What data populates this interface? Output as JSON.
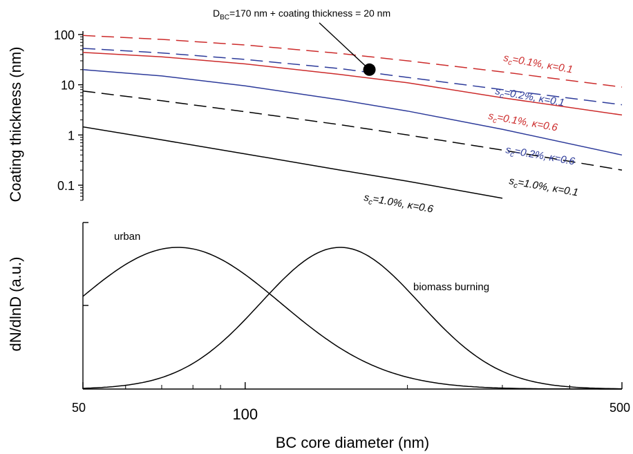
{
  "chart_data": [
    {
      "type": "line",
      "ylabel": "Coating thickness (nm)",
      "yscale": "log",
      "xscale": "log",
      "xlim": [
        50,
        500
      ],
      "ylim": [
        0.05,
        120
      ],
      "y_tick_labels": [
        "100",
        "10",
        "1",
        "0.1"
      ],
      "y_tick_values": [
        100,
        10,
        1,
        0.1
      ],
      "colors": {
        "red": "#cc2a2a",
        "blue": "#2c3a9a",
        "black": "#000000"
      },
      "series": [
        {
          "name": "sc=0.1%, κ=0.1",
          "label_main": "s",
          "label_sub": "c",
          "label_rest": "=0.1%, κ=0.1",
          "color": "#cc2a2a",
          "dash": true,
          "x": [
            50,
            70,
            100,
            150,
            200,
            300,
            500
          ],
          "y": [
            96,
            80,
            62,
            42,
            30,
            18,
            9
          ]
        },
        {
          "name": "sc=0.2%, κ=0.1",
          "label_main": "s",
          "label_sub": "c",
          "label_rest": "=0.2%, κ=0.1",
          "color": "#2c3a9a",
          "dash": true,
          "x": [
            50,
            70,
            100,
            150,
            200,
            300,
            500
          ],
          "y": [
            53,
            43,
            32,
            21,
            14,
            8,
            4
          ]
        },
        {
          "name": "sc=0.1%, κ=0.6",
          "label_main": "s",
          "label_sub": "c",
          "label_rest": "=0.1%, κ=0.6",
          "color": "#cc2a2a",
          "dash": false,
          "x": [
            50,
            70,
            100,
            150,
            200,
            300,
            500
          ],
          "y": [
            44,
            36,
            26,
            16,
            11,
            5.5,
            2.5
          ]
        },
        {
          "name": "sc=0.2%, κ=0.6",
          "label_main": "s",
          "label_sub": "c",
          "label_rest": "=0.2%, κ=0.6",
          "color": "#2c3a9a",
          "dash": false,
          "x": [
            50,
            70,
            100,
            150,
            200,
            300,
            500
          ],
          "y": [
            20,
            15,
            9.5,
            5,
            3,
            1.3,
            0.4
          ]
        },
        {
          "name": "sc=1.0%, κ=0.1",
          "label_main": "s",
          "label_sub": "c",
          "label_rest": "=1.0%, κ=0.1",
          "color": "#000000",
          "dash": true,
          "x": [
            50,
            70,
            100,
            150,
            200,
            300,
            500
          ],
          "y": [
            7.5,
            4.8,
            2.9,
            1.6,
            1.0,
            0.5,
            0.2
          ]
        },
        {
          "name": "sc=1.0%, κ=0.6",
          "label_main": "s",
          "label_sub": "c",
          "label_rest": "=1.0%, κ=0.6",
          "color": "#000000",
          "dash": false,
          "x": [
            50,
            70,
            100,
            150,
            200,
            300
          ],
          "y": [
            1.45,
            0.8,
            0.42,
            0.2,
            0.12,
            0.055
          ]
        }
      ],
      "point": {
        "x": 170,
        "y": 20
      },
      "annotation": {
        "main": "D",
        "sub": "BC",
        "rest": "=170 nm + coating thickness = 20 nm"
      }
    },
    {
      "type": "line",
      "xlabel": "BC core diameter (nm)",
      "ylabel": "dN/dlnD (a.u.)",
      "xscale": "log",
      "xlim": [
        50,
        500
      ],
      "ylim": [
        0,
        1.05
      ],
      "x_tick_labels": [
        "50",
        "100",
        "500"
      ],
      "x_tick_values": [
        50,
        100,
        500
      ],
      "series": [
        {
          "name": "urban",
          "center": 75,
          "sigma_ln": 0.44,
          "x": [
            50,
            60,
            75,
            100,
            150,
            200,
            300,
            500
          ],
          "y": [
            0.73,
            0.92,
            1.0,
            0.81,
            0.36,
            0.14,
            0.02,
            0.0
          ]
        },
        {
          "name": "biomass burning",
          "center": 150,
          "sigma_ln": 0.34,
          "x": [
            50,
            75,
            100,
            150,
            200,
            300,
            400,
            500
          ],
          "y": [
            0.01,
            0.09,
            0.43,
            1.0,
            0.74,
            0.17,
            0.03,
            0.0
          ]
        }
      ]
    }
  ]
}
